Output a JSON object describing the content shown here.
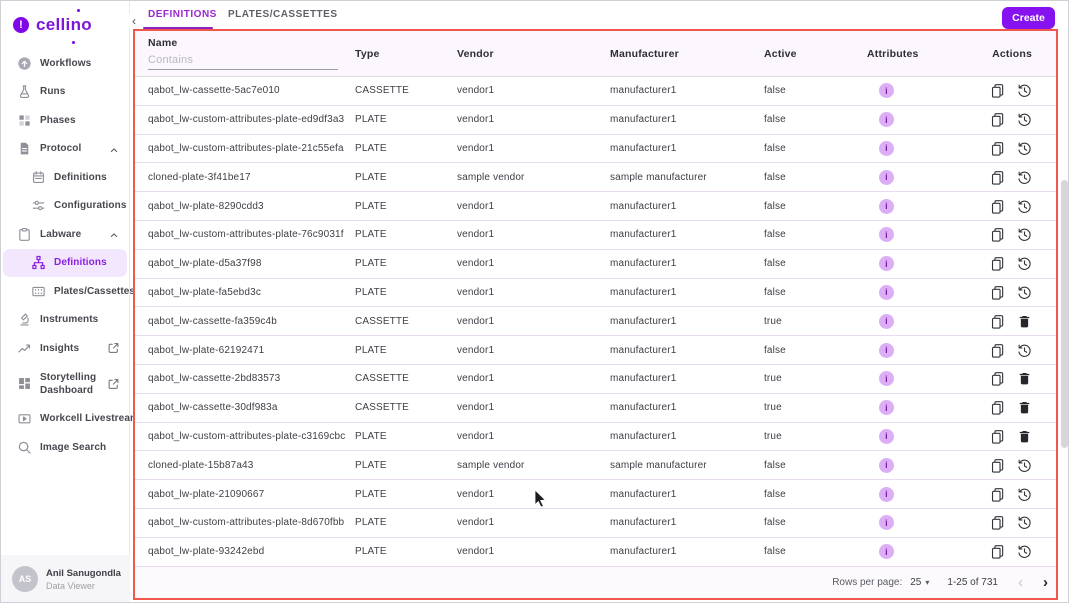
{
  "brand": {
    "name": "cellino"
  },
  "sidebar": {
    "items": [
      {
        "label": "Workflows",
        "icon": "workflows-icon"
      },
      {
        "label": "Runs",
        "icon": "runs-icon"
      },
      {
        "label": "Phases",
        "icon": "phases-icon"
      },
      {
        "label": "Protocol",
        "icon": "protocol-icon",
        "expanded": true
      },
      {
        "label": "Definitions",
        "icon": "calendar-icon",
        "sub": true
      },
      {
        "label": "Configurations",
        "icon": "sliders-icon",
        "sub": true
      },
      {
        "label": "Labware",
        "icon": "labware-icon",
        "expanded": true
      },
      {
        "label": "Definitions",
        "icon": "hierarchy-icon",
        "sub": true,
        "active": true
      },
      {
        "label": "Plates/Cassettes",
        "icon": "plate-grid-icon",
        "sub": true
      },
      {
        "label": "Instruments",
        "icon": "microscope-icon"
      },
      {
        "label": "Insights",
        "icon": "trend-icon",
        "external": true
      },
      {
        "label": "Storytelling Dashboard",
        "icon": "dashboard-icon",
        "external": true
      },
      {
        "label": "Workcell Livestream",
        "icon": "livestream-icon"
      },
      {
        "label": "Image Search",
        "icon": "search-icon"
      }
    ],
    "user": {
      "initials": "AS",
      "name": "Anil Sanugondla",
      "role": "Data Viewer"
    }
  },
  "header": {
    "tabs": [
      {
        "label": "DEFINITIONS",
        "active": true
      },
      {
        "label": "PLATES/CASSETTES",
        "active": false
      }
    ],
    "create_label": "Create"
  },
  "table": {
    "columns": [
      "Name",
      "Type",
      "Vendor",
      "Manufacturer",
      "Active",
      "Attributes",
      "Actions"
    ],
    "name_filter_placeholder": "Contains",
    "rows": [
      {
        "name": "qabot_lw-cassette-5ac7e010",
        "type": "CASSETTE",
        "vendor": "vendor1",
        "manufacturer": "manufacturer1",
        "active": "false"
      },
      {
        "name": "qabot_lw-custom-attributes-plate-ed9df3a3",
        "type": "PLATE",
        "vendor": "vendor1",
        "manufacturer": "manufacturer1",
        "active": "false"
      },
      {
        "name": "qabot_lw-custom-attributes-plate-21c55efa",
        "type": "PLATE",
        "vendor": "vendor1",
        "manufacturer": "manufacturer1",
        "active": "false"
      },
      {
        "name": "cloned-plate-3f41be17",
        "type": "PLATE",
        "vendor": "sample vendor",
        "manufacturer": "sample manufacturer",
        "active": "false"
      },
      {
        "name": "qabot_lw-plate-8290cdd3",
        "type": "PLATE",
        "vendor": "vendor1",
        "manufacturer": "manufacturer1",
        "active": "false"
      },
      {
        "name": "qabot_lw-custom-attributes-plate-76c9031f",
        "type": "PLATE",
        "vendor": "vendor1",
        "manufacturer": "manufacturer1",
        "active": "false"
      },
      {
        "name": "qabot_lw-plate-d5a37f98",
        "type": "PLATE",
        "vendor": "vendor1",
        "manufacturer": "manufacturer1",
        "active": "false"
      },
      {
        "name": "qabot_lw-plate-fa5ebd3c",
        "type": "PLATE",
        "vendor": "vendor1",
        "manufacturer": "manufacturer1",
        "active": "false"
      },
      {
        "name": "qabot_lw-cassette-fa359c4b",
        "type": "CASSETTE",
        "vendor": "vendor1",
        "manufacturer": "manufacturer1",
        "active": "true"
      },
      {
        "name": "qabot_lw-plate-62192471",
        "type": "PLATE",
        "vendor": "vendor1",
        "manufacturer": "manufacturer1",
        "active": "false"
      },
      {
        "name": "qabot_lw-cassette-2bd83573",
        "type": "CASSETTE",
        "vendor": "vendor1",
        "manufacturer": "manufacturer1",
        "active": "true"
      },
      {
        "name": "qabot_lw-cassette-30df983a",
        "type": "CASSETTE",
        "vendor": "vendor1",
        "manufacturer": "manufacturer1",
        "active": "true"
      },
      {
        "name": "qabot_lw-custom-attributes-plate-c3169cbc",
        "type": "PLATE",
        "vendor": "vendor1",
        "manufacturer": "manufacturer1",
        "active": "true"
      },
      {
        "name": "cloned-plate-15b87a43",
        "type": "PLATE",
        "vendor": "sample vendor",
        "manufacturer": "sample manufacturer",
        "active": "false"
      },
      {
        "name": "qabot_lw-plate-21090667",
        "type": "PLATE",
        "vendor": "vendor1",
        "manufacturer": "manufacturer1",
        "active": "false"
      },
      {
        "name": "qabot_lw-custom-attributes-plate-8d670fbb",
        "type": "PLATE",
        "vendor": "vendor1",
        "manufacturer": "manufacturer1",
        "active": "false"
      },
      {
        "name": "qabot_lw-plate-93242ebd",
        "type": "PLATE",
        "vendor": "vendor1",
        "manufacturer": "manufacturer1",
        "active": "false"
      }
    ],
    "footer": {
      "rows_per_page_label": "Rows per page:",
      "rows_per_page_value": "25",
      "range_label": "1-25 of 731"
    }
  },
  "colors": {
    "brand_purple": "#8007e8",
    "active_tab_purple": "#9a27cd",
    "create_button": "#8712f0",
    "annotation_border_red": "#f2564c",
    "row_divider": "#e7daf3",
    "badge_bg": "#dcaef5",
    "badge_fg": "#7b1fa2",
    "active_item_bg": "#f3e7fd"
  }
}
